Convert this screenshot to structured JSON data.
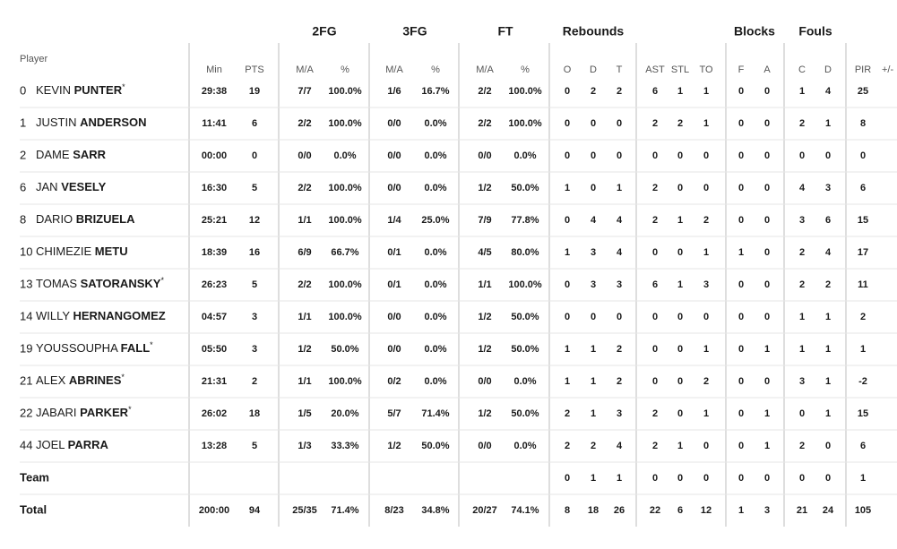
{
  "group_headers": [
    "2FG",
    "3FG",
    "FT",
    "Rebounds",
    "Blocks",
    "Fouls"
  ],
  "columns": [
    "Player",
    "Min",
    "PTS",
    "M/A",
    "%",
    "M/A",
    "%",
    "M/A",
    "%",
    "O",
    "D",
    "T",
    "AST",
    "STL",
    "TO",
    "F",
    "A",
    "C",
    "D",
    "PIR",
    "+/-"
  ],
  "rows": [
    {
      "number": "0",
      "first": "KEVIN",
      "last": "PUNTER",
      "star": "*",
      "stats": [
        "29:38",
        "19",
        "7/7",
        "100.0%",
        "1/6",
        "16.7%",
        "2/2",
        "100.0%",
        "0",
        "2",
        "2",
        "6",
        "1",
        "1",
        "0",
        "0",
        "1",
        "4",
        "25"
      ]
    },
    {
      "number": "1",
      "first": "JUSTIN",
      "last": "ANDERSON",
      "stats": [
        "11:41",
        "6",
        "2/2",
        "100.0%",
        "0/0",
        "0.0%",
        "2/2",
        "100.0%",
        "0",
        "0",
        "0",
        "2",
        "2",
        "1",
        "0",
        "0",
        "2",
        "1",
        "8"
      ]
    },
    {
      "number": "2",
      "first": "DAME",
      "last": "SARR",
      "stats": [
        "00:00",
        "0",
        "0/0",
        "0.0%",
        "0/0",
        "0.0%",
        "0/0",
        "0.0%",
        "0",
        "0",
        "0",
        "0",
        "0",
        "0",
        "0",
        "0",
        "0",
        "0",
        "0"
      ]
    },
    {
      "number": "6",
      "first": "JAN",
      "last": "VESELY",
      "stats": [
        "16:30",
        "5",
        "2/2",
        "100.0%",
        "0/0",
        "0.0%",
        "1/2",
        "50.0%",
        "1",
        "0",
        "1",
        "2",
        "0",
        "0",
        "0",
        "0",
        "4",
        "3",
        "6"
      ]
    },
    {
      "number": "8",
      "first": "DARIO",
      "last": "BRIZUELA",
      "stats": [
        "25:21",
        "12",
        "1/1",
        "100.0%",
        "1/4",
        "25.0%",
        "7/9",
        "77.8%",
        "0",
        "4",
        "4",
        "2",
        "1",
        "2",
        "0",
        "0",
        "3",
        "6",
        "15"
      ]
    },
    {
      "number": "10",
      "first": "CHIMEZIE",
      "last": "METU",
      "stats": [
        "18:39",
        "16",
        "6/9",
        "66.7%",
        "0/1",
        "0.0%",
        "4/5",
        "80.0%",
        "1",
        "3",
        "4",
        "0",
        "0",
        "1",
        "1",
        "0",
        "2",
        "4",
        "17"
      ]
    },
    {
      "number": "13",
      "first": "TOMAS",
      "last": "SATORANSKY",
      "star": "*",
      "stats": [
        "26:23",
        "5",
        "2/2",
        "100.0%",
        "0/1",
        "0.0%",
        "1/1",
        "100.0%",
        "0",
        "3",
        "3",
        "6",
        "1",
        "3",
        "0",
        "0",
        "2",
        "2",
        "11"
      ]
    },
    {
      "number": "14",
      "first": "WILLY",
      "last": "HERNANGOMEZ",
      "stats": [
        "04:57",
        "3",
        "1/1",
        "100.0%",
        "0/0",
        "0.0%",
        "1/2",
        "50.0%",
        "0",
        "0",
        "0",
        "0",
        "0",
        "0",
        "0",
        "0",
        "1",
        "1",
        "2"
      ]
    },
    {
      "number": "19",
      "first": "YOUSSOUPHA",
      "last": "FALL",
      "star": "*",
      "stats": [
        "05:50",
        "3",
        "1/2",
        "50.0%",
        "0/0",
        "0.0%",
        "1/2",
        "50.0%",
        "1",
        "1",
        "2",
        "0",
        "0",
        "1",
        "0",
        "1",
        "1",
        "1",
        "1"
      ]
    },
    {
      "number": "21",
      "first": "ALEX",
      "last": "ABRINES",
      "star": "*",
      "stats": [
        "21:31",
        "2",
        "1/1",
        "100.0%",
        "0/2",
        "0.0%",
        "0/0",
        "0.0%",
        "1",
        "1",
        "2",
        "0",
        "0",
        "2",
        "0",
        "0",
        "3",
        "1",
        "-2"
      ]
    },
    {
      "number": "22",
      "first": "JABARI",
      "last": "PARKER",
      "star": "*",
      "stats": [
        "26:02",
        "18",
        "1/5",
        "20.0%",
        "5/7",
        "71.4%",
        "1/2",
        "50.0%",
        "2",
        "1",
        "3",
        "2",
        "0",
        "1",
        "0",
        "1",
        "0",
        "1",
        "15"
      ]
    },
    {
      "number": "44",
      "first": "JOEL",
      "last": "PARRA",
      "stats": [
        "13:28",
        "5",
        "1/3",
        "33.3%",
        "1/2",
        "50.0%",
        "0/0",
        "0.0%",
        "2",
        "2",
        "4",
        "2",
        "1",
        "0",
        "0",
        "1",
        "2",
        "0",
        "6"
      ]
    }
  ],
  "team": {
    "label": "Team",
    "stats": [
      "0",
      "1",
      "1",
      "0",
      "0",
      "0",
      "0",
      "0",
      "0",
      "0",
      "1"
    ]
  },
  "total": {
    "label": "Total",
    "stats": [
      "200:00",
      "94",
      "25/35",
      "71.4%",
      "8/23",
      "34.8%",
      "20/27",
      "74.1%",
      "8",
      "18",
      "26",
      "22",
      "6",
      "12",
      "1",
      "3",
      "21",
      "24",
      "105"
    ]
  }
}
